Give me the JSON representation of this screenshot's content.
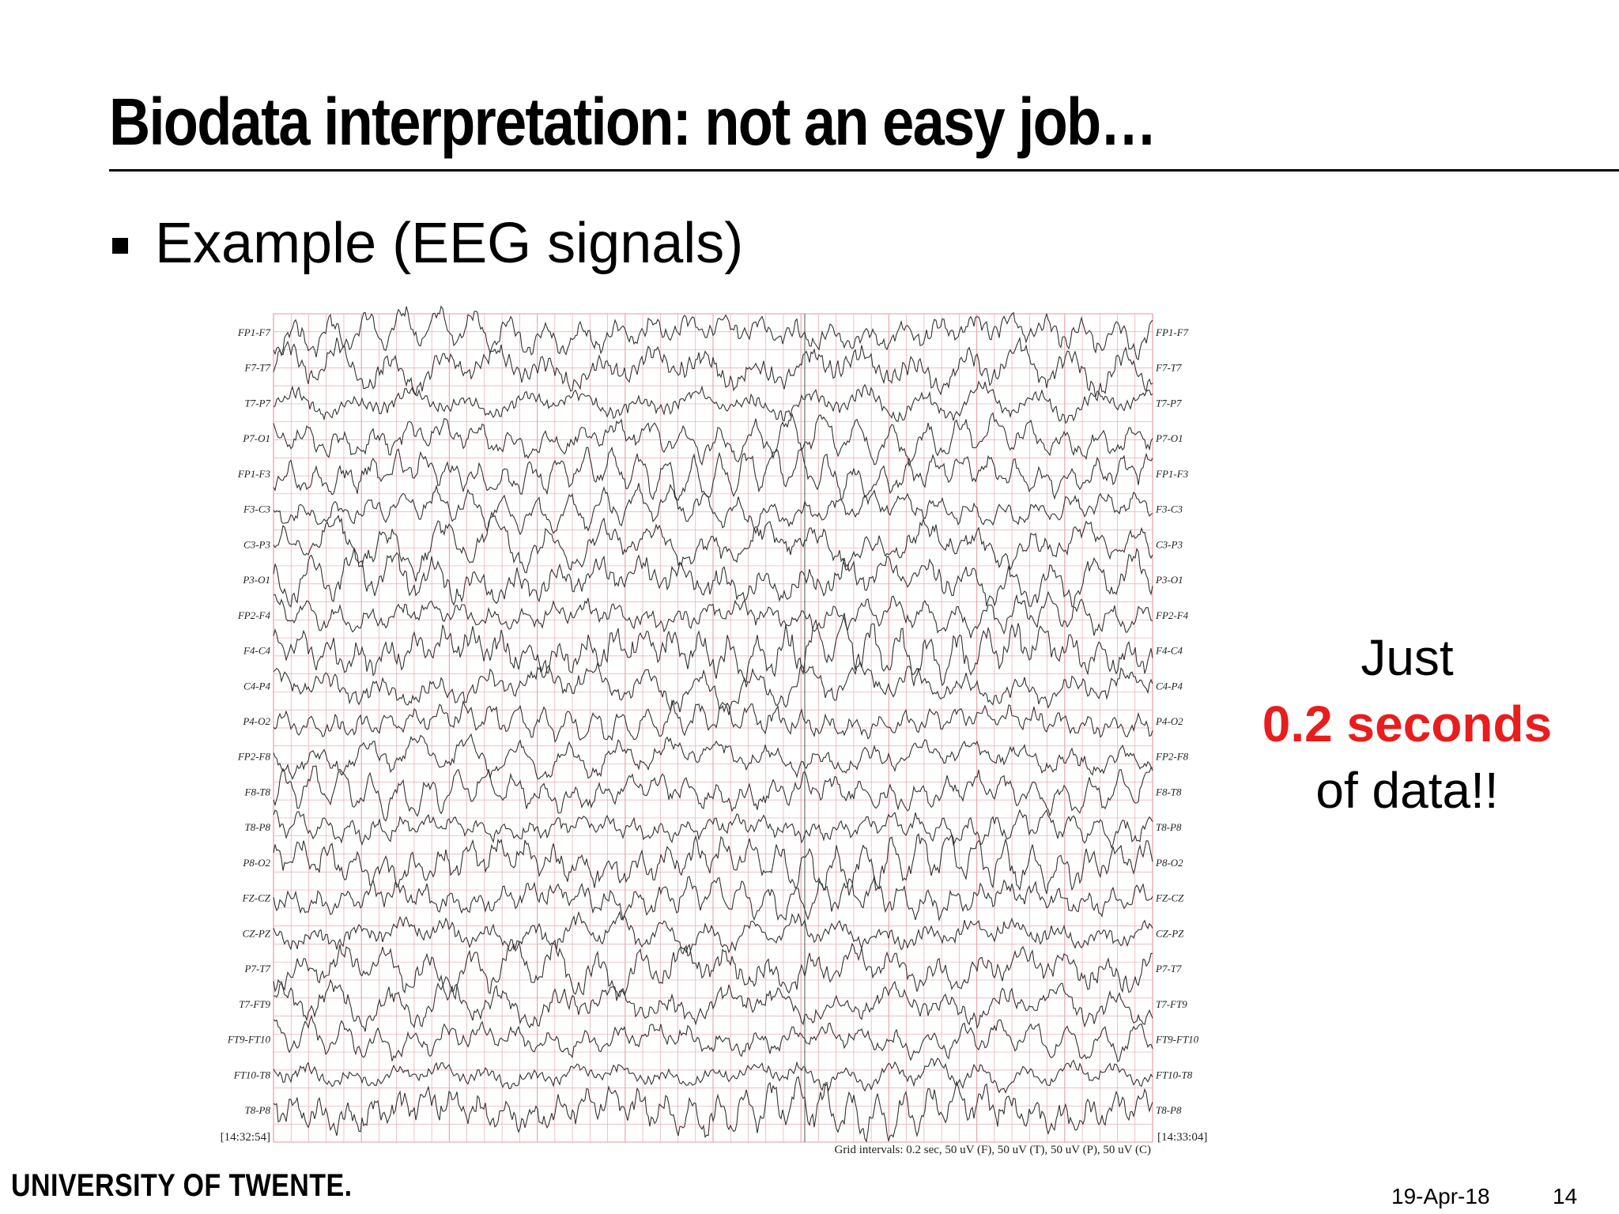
{
  "slide": {
    "title": "Biodata interpretation: not an easy job…",
    "bullet": "Example (EEG signals)"
  },
  "chart_data": {
    "type": "line",
    "channels_left": [
      "FP1-F7",
      "F7-T7",
      "T7-P7",
      "P7-O1",
      "FP1-F3",
      "F3-C3",
      "C3-P3",
      "P3-O1",
      "FP2-F4",
      "F4-C4",
      "C4-P4",
      "P4-O2",
      "FP2-F8",
      "F8-T8",
      "T8-P8",
      "P8-O2",
      "FZ-CZ",
      "CZ-PZ",
      "P7-T7",
      "T7-FT9",
      "FT9-FT10",
      "FT10-T8",
      "T8-P8"
    ],
    "channels_right": [
      "FP1-F7",
      "F7-T7",
      "T7-P7",
      "P7-O1",
      "FP1-F3",
      "F3-C3",
      "C3-P3",
      "P3-O1",
      "FP2-F4",
      "F4-C4",
      "C4-P4",
      "P4-O2",
      "FP2-F8",
      "F8-T8",
      "T8-P8",
      "P8-O2",
      "FZ-CZ",
      "CZ-PZ",
      "P7-T7",
      "T7-FT9",
      "FT9-FT10",
      "FT10-T8",
      "T8-P8"
    ],
    "start_time": "[14:32:54]",
    "end_time": "[14:33:04]",
    "grid_caption": "Grid intervals: 0.2 sec, 50 uV (F), 50 uV (T), 50 uV (P), 50 uV (C)",
    "grid": true,
    "colors": {
      "grid": "#e8a8b0",
      "trace": "#333333"
    }
  },
  "callout": {
    "line1": "Just",
    "line2": "0.2 seconds",
    "line3": "of data!!",
    "accent_color": "#e81d1d"
  },
  "footer": {
    "logo_text": "UNIVERSITY OF TWENTE.",
    "date": "19-Apr-18",
    "page": "14"
  }
}
